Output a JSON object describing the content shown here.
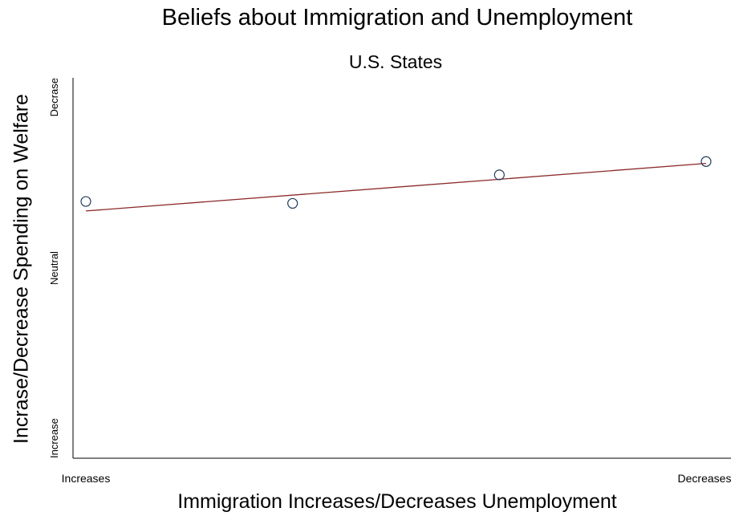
{
  "chart_data": {
    "type": "scatter",
    "title": "Beliefs about Immigration and Unemployment",
    "subtitle": "U.S. States",
    "xlabel": "Immigration Increases/Decreases Unemployment",
    "ylabel": "Incrase/Decrease Spending on Welfare",
    "x_tick_labels": [
      "Increases",
      "Decreases"
    ],
    "y_tick_labels": [
      "Increase",
      "Neutral",
      "Decrase"
    ],
    "xlim": [
      1,
      4
    ],
    "ylim": [
      -1,
      1
    ],
    "points": [
      {
        "x": 1,
        "y": 0.35
      },
      {
        "x": 2,
        "y": 0.34
      },
      {
        "x": 3,
        "y": 0.49
      },
      {
        "x": 4,
        "y": 0.56
      }
    ],
    "trendline": {
      "x": [
        1,
        4
      ],
      "y": [
        0.3,
        0.55
      ]
    },
    "grid": false,
    "colors": {
      "points": "#1f3b57",
      "trendline": "#8b2a2a",
      "axis": "#000000"
    }
  }
}
